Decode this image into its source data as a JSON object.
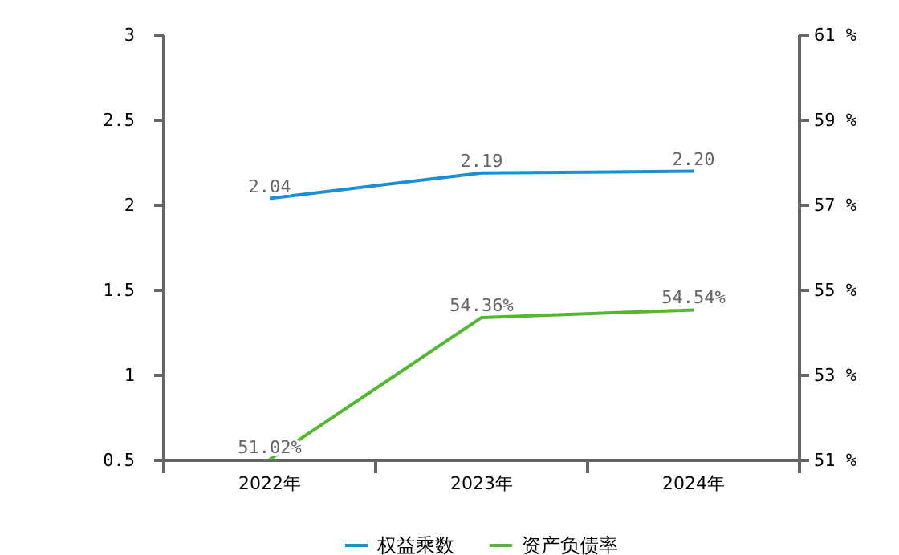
{
  "chart_data": {
    "type": "line",
    "categories": [
      "2022年",
      "2023年",
      "2024年"
    ],
    "series": [
      {
        "name": "权益乘数",
        "color": "#1a8fd4",
        "values": [
          2.04,
          2.19,
          2.2
        ],
        "value_labels": [
          "2.04",
          "2.19",
          "2.20"
        ]
      },
      {
        "name": "资产负债率",
        "color": "#52b82f",
        "axis": "y2",
        "values": [
          51.02,
          54.36,
          54.54
        ],
        "value_labels": [
          "51.02%",
          "54.36%",
          "54.54%"
        ]
      }
    ],
    "ylim": [
      0.5,
      3
    ],
    "yticks": [
      0.5,
      1,
      1.5,
      2,
      2.5,
      3
    ],
    "y2lim": [
      51,
      61
    ],
    "y2ticks": [
      {
        "value": 51,
        "label": "51 %"
      },
      {
        "value": 53,
        "label": "53 %"
      },
      {
        "value": 55,
        "label": "55 %"
      },
      {
        "value": 57,
        "label": "57 %"
      },
      {
        "value": 59,
        "label": "59 %"
      },
      {
        "value": 61,
        "label": "61 %"
      }
    ],
    "grid": false,
    "legend": "bottom",
    "marker": "none",
    "line_style": "solid"
  }
}
